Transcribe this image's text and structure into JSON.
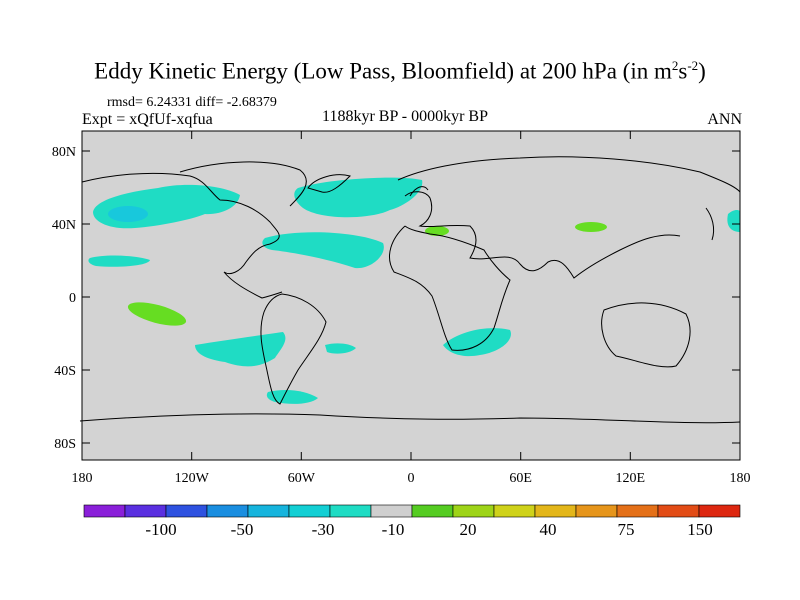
{
  "header": {
    "title_main": "Eddy Kinetic Energy (Low Pass, Bloomfield) at 200 hPa (in m",
    "title_sup1": "2",
    "title_mid": "s",
    "title_sup2": "-2",
    "title_end": ")",
    "rmsd": "rmsd= 6.24331 diff= -2.68379",
    "expt": "Expt = xQfUf-xqfua",
    "period": "1188kyr BP - 0000kyr BP",
    "season": "ANN"
  },
  "axes": {
    "y_ticks": [
      "80N",
      "40N",
      "0",
      "40S",
      "80S"
    ],
    "x_ticks": [
      "180",
      "120W",
      "60W",
      "0",
      "60E",
      "120E",
      "180"
    ]
  },
  "colorbar": {
    "labels": [
      "-100",
      "-50",
      "-30",
      "-10",
      "20",
      "40",
      "75",
      "150"
    ],
    "colors": [
      "#8a1fd9",
      "#5a2fe0",
      "#2e52e0",
      "#1a8ee0",
      "#16b4dd",
      "#13cfd4",
      "#1fdcc4",
      "#cfcfcf",
      "#55cc22",
      "#9ed418",
      "#cfd21a",
      "#e3b61a",
      "#e6951b",
      "#e47018",
      "#e24c16",
      "#dd2710"
    ]
  },
  "map": {
    "background_color": "#d3d3d3",
    "land_line_color": "#000000",
    "positive_color": "#66dd22",
    "negative_color": "#20e0c0",
    "blue_color": "#18c8dc"
  }
}
